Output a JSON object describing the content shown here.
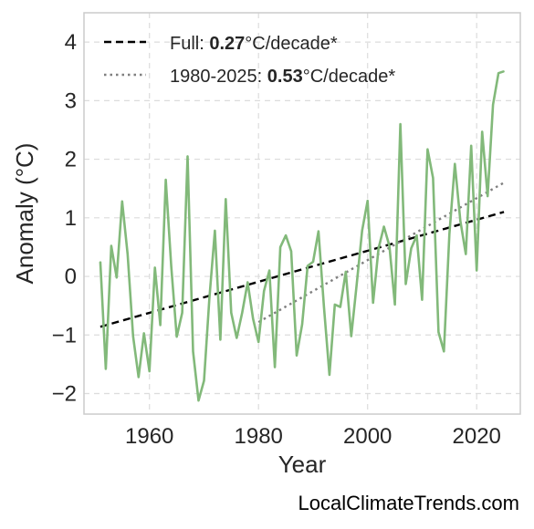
{
  "chart_data": {
    "type": "line",
    "xlabel": "Year",
    "ylabel": "Anomaly (°C)",
    "xlim": [
      1948,
      2028
    ],
    "ylim": [
      -2.35,
      4.5
    ],
    "xticks": [
      1960,
      1980,
      2000,
      2020
    ],
    "yticks": [
      -2,
      -1,
      0,
      1,
      2,
      3,
      4
    ],
    "ytick_labels": [
      "−2",
      "−1",
      "0",
      "1",
      "2",
      "3",
      "4"
    ],
    "grid": true,
    "legend_position": "top-left",
    "x": [
      1951,
      1952,
      1953,
      1954,
      1955,
      1956,
      1957,
      1958,
      1959,
      1960,
      1961,
      1962,
      1963,
      1964,
      1965,
      1966,
      1967,
      1968,
      1969,
      1970,
      1971,
      1972,
      1973,
      1974,
      1975,
      1976,
      1977,
      1978,
      1979,
      1980,
      1981,
      1982,
      1983,
      1984,
      1985,
      1986,
      1987,
      1988,
      1989,
      1990,
      1991,
      1992,
      1993,
      1994,
      1995,
      1996,
      1997,
      1998,
      1999,
      2000,
      2001,
      2002,
      2003,
      2004,
      2005,
      2006,
      2007,
      2008,
      2009,
      2010,
      2011,
      2012,
      2013,
      2014,
      2015,
      2016,
      2017,
      2018,
      2019,
      2020,
      2021,
      2022,
      2023,
      2024,
      2025
    ],
    "series": [
      {
        "color": "#82b97a",
        "values": [
          0.25,
          -1.58,
          0.52,
          -0.02,
          1.28,
          0.38,
          -1.02,
          -1.72,
          -0.97,
          -1.62,
          0.15,
          -0.83,
          1.65,
          0.17,
          -1.03,
          -0.62,
          2.05,
          -1.28,
          -2.12,
          -1.78,
          -0.37,
          0.78,
          -1.08,
          1.32,
          -0.62,
          -1.05,
          -0.62,
          -0.1,
          -0.72,
          -1.12,
          -0.25,
          0.1,
          -1.55,
          0.5,
          0.7,
          0.43,
          -1.35,
          -0.82,
          0.18,
          0.25,
          0.77,
          -0.52,
          -1.68,
          -0.48,
          -0.52,
          0.08,
          -1.02,
          -0.13,
          0.78,
          1.29,
          -0.45,
          0.48,
          0.85,
          0.52,
          -0.48,
          2.6,
          -0.13,
          0.48,
          0.7,
          -0.4,
          2.17,
          1.68,
          -0.95,
          -1.28,
          0.72,
          1.92,
          0.95,
          0.38,
          2.23,
          0.1,
          2.47,
          1.37,
          2.93,
          3.47,
          3.5
        ]
      }
    ],
    "trends": [
      {
        "label_prefix": "Full: ",
        "label_value": "0.27",
        "label_suffix": "°C/decade*",
        "style": "dashed",
        "color": "#000000",
        "x": [
          1951,
          2025
        ],
        "y": [
          -0.86,
          1.1
        ]
      },
      {
        "label_prefix": "1980-2025: ",
        "label_value": "0.53",
        "label_suffix": "°C/decade*",
        "style": "dotted",
        "color": "#7f7f7f",
        "x": [
          1980,
          2025
        ],
        "y": [
          -0.78,
          1.6
        ]
      }
    ]
  },
  "footer": "LocalClimateTrends.com"
}
